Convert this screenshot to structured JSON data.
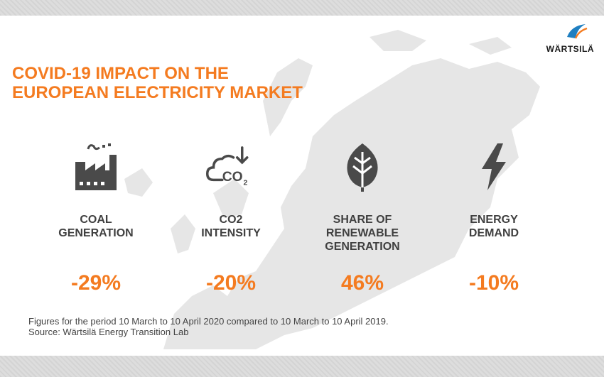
{
  "brand": {
    "logo_text": "WÄRTSILÄ",
    "accent_color": "#f47b20",
    "logo_blue": "#1f7fc1"
  },
  "title": {
    "line1": "COVID-19 IMPACT ON THE",
    "line2": "EUROPEAN ELECTRICITY MARKET"
  },
  "metrics": [
    {
      "icon": "factory-icon",
      "label_line1": "COAL",
      "label_line2": "GENERATION",
      "label_line3": "",
      "value": "-29%"
    },
    {
      "icon": "co2-cloud-icon",
      "label_line1": "CO2",
      "label_line2": "INTENSITY",
      "label_line3": "",
      "value": "-20%"
    },
    {
      "icon": "leaf-icon",
      "label_line1": "SHARE OF",
      "label_line2": "RENEWABLE",
      "label_line3": "GENERATION",
      "value": "46%"
    },
    {
      "icon": "lightning-bolt-icon",
      "label_line1": "ENERGY",
      "label_line2": "DEMAND",
      "label_line3": "",
      "value": "-10%"
    }
  ],
  "icon_text": {
    "co2": "CO",
    "co2_sub": "2"
  },
  "footnote": {
    "line1": "Figures for the period 10 March to 10 April 2020 compared to 10 March to 10 April 2019.",
    "line2": "Source: Wärtsilä Energy Transition Lab"
  }
}
